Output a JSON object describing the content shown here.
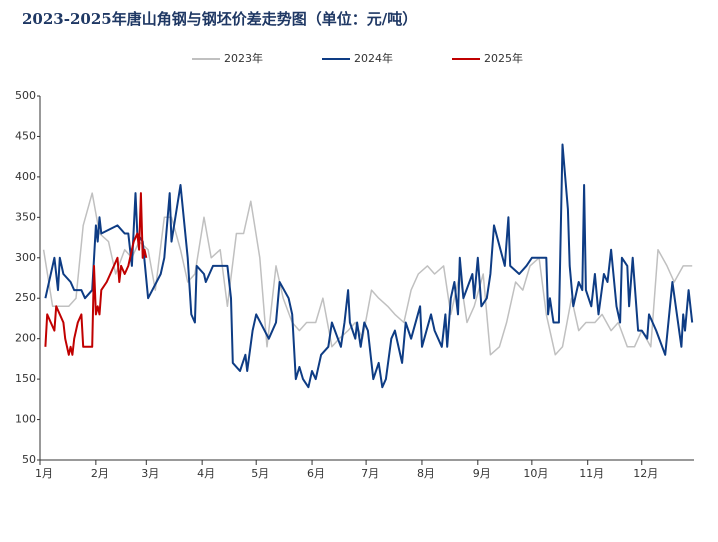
{
  "chart_data": {
    "type": "line",
    "title": "2023-2025年唐山角钢与钢坯价差走势图（单位：元/吨）",
    "legend": "upper center",
    "grid": false,
    "xlim": [
      1,
      364
    ],
    "xticks": [
      {
        "value": 1,
        "label": "1月"
      },
      {
        "value": 32,
        "label": "2月"
      },
      {
        "value": 60,
        "label": "3月"
      },
      {
        "value": 91,
        "label": "4月"
      },
      {
        "value": 121,
        "label": "5月"
      },
      {
        "value": 152,
        "label": "6月"
      },
      {
        "value": 182,
        "label": "7月"
      },
      {
        "value": 213,
        "label": "8月"
      },
      {
        "value": 244,
        "label": "9月"
      },
      {
        "value": 274,
        "label": "10月"
      },
      {
        "value": 305,
        "label": "11月"
      },
      {
        "value": 335,
        "label": "12月"
      }
    ],
    "ylim": [
      50,
      500
    ],
    "yticks": [
      50,
      100,
      150,
      200,
      250,
      300,
      350,
      400,
      450,
      500
    ],
    "series": [
      {
        "name": "2023年",
        "color": "#c0c0c0",
        "x": [
          3,
          8,
          12,
          17,
          21,
          25,
          30,
          34,
          39,
          43,
          48,
          52,
          56,
          61,
          65,
          70,
          74,
          79,
          83,
          87,
          92,
          96,
          101,
          105,
          110,
          114,
          118,
          123,
          127,
          132,
          136,
          141,
          145,
          149,
          154,
          158,
          163,
          167,
          172,
          176,
          180,
          185,
          189,
          194,
          198,
          203,
          207,
          211,
          216,
          220,
          225,
          229,
          234,
          238,
          242,
          247,
          251,
          256,
          260,
          265,
          269,
          273,
          278,
          282,
          287,
          291,
          296,
          300,
          304,
          309,
          313,
          318,
          322,
          327,
          331,
          335,
          340,
          344,
          349,
          353,
          358,
          363
        ],
        "values": [
          310,
          240,
          240,
          240,
          250,
          340,
          380,
          330,
          320,
          280,
          310,
          300,
          320,
          310,
          260,
          350,
          350,
          310,
          270,
          280,
          350,
          300,
          310,
          240,
          330,
          330,
          370,
          300,
          190,
          290,
          250,
          220,
          210,
          220,
          220,
          250,
          190,
          200,
          210,
          220,
          200,
          260,
          250,
          240,
          230,
          220,
          260,
          280,
          290,
          280,
          290,
          230,
          280,
          220,
          240,
          280,
          180,
          190,
          220,
          270,
          260,
          290,
          300,
          230,
          180,
          190,
          250,
          210,
          220,
          220,
          230,
          210,
          220,
          190,
          190,
          210,
          190,
          310,
          290,
          270,
          290,
          290
        ]
      },
      {
        "name": "2024年",
        "color": "#0e3c84",
        "x": [
          4,
          9,
          11,
          12,
          14,
          18,
          20,
          24,
          26,
          30,
          32,
          33,
          34,
          35,
          44,
          48,
          50,
          52,
          54,
          55,
          58,
          61,
          68,
          70,
          73,
          74,
          79,
          83,
          85,
          87,
          88,
          92,
          93,
          97,
          105,
          107,
          108,
          112,
          115,
          116,
          119,
          121,
          128,
          132,
          134,
          139,
          141,
          143,
          145,
          147,
          150,
          152,
          154,
          157,
          161,
          163,
          168,
          170,
          172,
          173,
          176,
          177,
          179,
          181,
          183,
          186,
          189,
          191,
          193,
          196,
          198,
          202,
          204,
          207,
          212,
          213,
          218,
          220,
          224,
          226,
          227,
          229,
          231,
          233,
          234,
          236,
          241,
          242,
          244,
          246,
          249,
          251,
          253,
          259,
          261,
          262,
          267,
          271,
          274,
          282,
          283,
          284,
          286,
          289,
          291,
          294,
          295,
          297,
          300,
          302,
          303,
          304,
          307,
          309,
          311,
          314,
          316,
          318,
          321,
          323,
          324,
          327,
          328,
          330,
          333,
          335,
          338,
          339,
          343,
          348,
          352,
          357,
          358,
          359,
          361,
          363
        ],
        "values": [
          250,
          300,
          260,
          300,
          280,
          270,
          260,
          260,
          250,
          260,
          340,
          320,
          350,
          330,
          340,
          330,
          330,
          290,
          380,
          330,
          320,
          250,
          280,
          300,
          380,
          320,
          390,
          300,
          230,
          220,
          290,
          280,
          270,
          290,
          290,
          250,
          170,
          160,
          180,
          160,
          210,
          230,
          200,
          220,
          270,
          250,
          230,
          150,
          165,
          150,
          140,
          160,
          150,
          180,
          190,
          220,
          190,
          220,
          260,
          220,
          200,
          220,
          190,
          220,
          210,
          150,
          170,
          140,
          150,
          200,
          210,
          170,
          220,
          200,
          240,
          190,
          230,
          210,
          190,
          230,
          190,
          250,
          270,
          230,
          300,
          250,
          280,
          250,
          300,
          240,
          250,
          280,
          340,
          290,
          350,
          290,
          280,
          290,
          300,
          300,
          230,
          250,
          220,
          220,
          440,
          360,
          290,
          240,
          270,
          260,
          390,
          260,
          240,
          280,
          230,
          280,
          270,
          310,
          240,
          220,
          300,
          290,
          240,
          300,
          210,
          210,
          200,
          230,
          210,
          180,
          270,
          190,
          230,
          210,
          260,
          220
        ]
      },
      {
        "name": "2025年",
        "color": "#c00000",
        "x": [
          4,
          5,
          7,
          9,
          10,
          12,
          14,
          15,
          17,
          18,
          19,
          20,
          22,
          24,
          25,
          28,
          30,
          31,
          32,
          33,
          34,
          35,
          38,
          40,
          42,
          44,
          45,
          46,
          48,
          50,
          53,
          55,
          56,
          57,
          58,
          59,
          60
        ],
        "values": [
          190,
          230,
          220,
          210,
          240,
          230,
          220,
          200,
          180,
          190,
          180,
          200,
          220,
          230,
          190,
          190,
          190,
          290,
          230,
          240,
          230,
          260,
          270,
          280,
          290,
          300,
          270,
          290,
          280,
          290,
          320,
          330,
          310,
          380,
          300,
          310,
          300
        ]
      }
    ]
  }
}
